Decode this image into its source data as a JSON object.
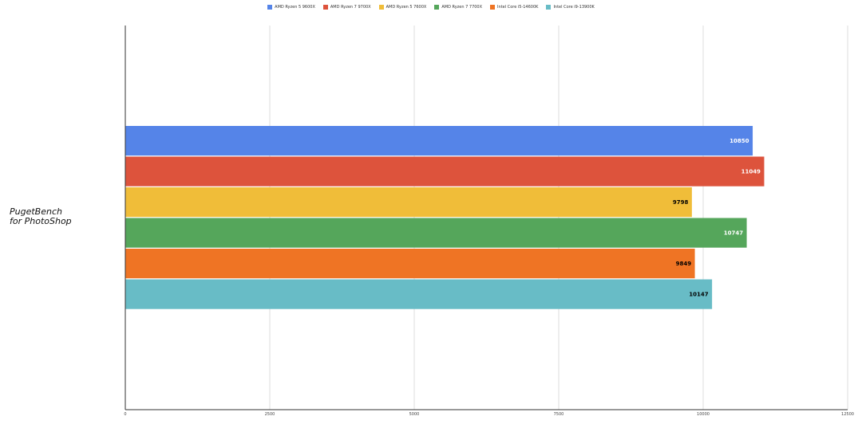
{
  "chart_data": {
    "type": "bar",
    "orientation": "horizontal",
    "categories": [
      "PugetBench\nfor PhotoShop"
    ],
    "series": [
      {
        "name": "AMD Ryzen 5 9600X",
        "color": "#5584e8",
        "label_color": "#ffffff",
        "values": [
          10850
        ]
      },
      {
        "name": "AMD Ryzen 7 9700X",
        "color": "#dd533c",
        "label_color": "#ffffff",
        "values": [
          11049
        ]
      },
      {
        "name": "AMD Ryzen 5 7600X",
        "color": "#f0bd39",
        "label_color": "#000000",
        "values": [
          9798
        ]
      },
      {
        "name": "AMD Ryzen 7 7700X",
        "color": "#55a65b",
        "label_color": "#ffffff",
        "values": [
          10747
        ]
      },
      {
        "name": "Intel Core i5-14600K",
        "color": "#ef7424",
        "label_color": "#000000",
        "values": [
          9849
        ]
      },
      {
        "name": "Intel Core i9-13900K",
        "color": "#68bcc6",
        "label_color": "#000000",
        "values": [
          10147
        ]
      }
    ],
    "xlim": [
      0,
      12500
    ],
    "xticks": [
      "0",
      "2500",
      "5000",
      "7500",
      "10000",
      "12500"
    ],
    "grid": true,
    "legend_position": "top-center"
  }
}
